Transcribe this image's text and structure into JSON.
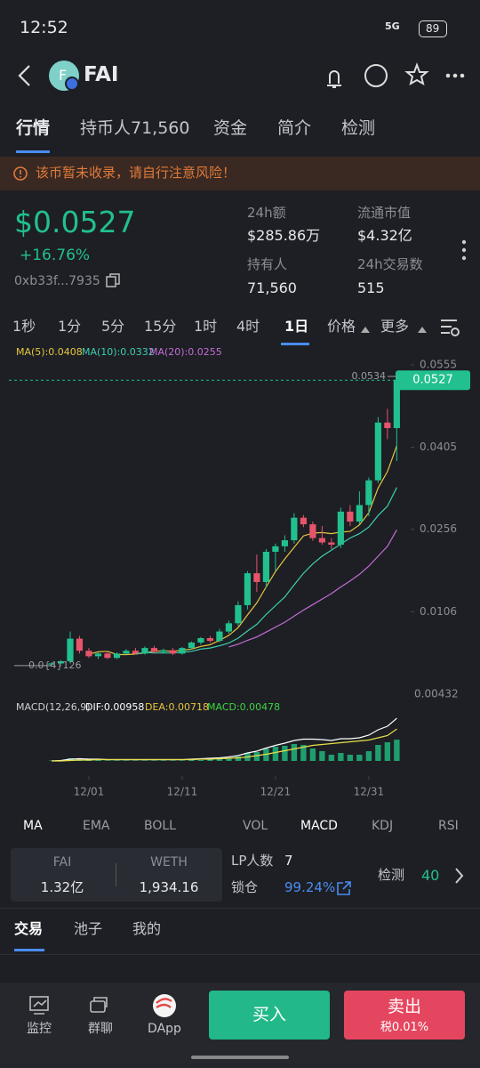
{
  "status_bar": {
    "time": "12:52",
    "network": "5G",
    "battery": "89"
  },
  "header": {
    "icon_letter": "F",
    "token": "FAI"
  },
  "tabs": [
    "行情",
    "持币人71,560",
    "资金",
    "简介",
    "检测"
  ],
  "warning": "该币暂未收录，请自行注意风险！",
  "price": {
    "value": "$0.0527",
    "change": "+16.76%",
    "address": "0xb33f...7935"
  },
  "stats": [
    {
      "label": "24h额",
      "value": "$285.86万"
    },
    {
      "label": "流通市值",
      "value": "$4.32亿"
    },
    {
      "label": "持有人",
      "value": "71,560"
    },
    {
      "label": "24h交易数",
      "value": "515"
    }
  ],
  "intervals": [
    "1秒",
    "1分",
    "5分",
    "15分",
    "1时",
    "4时",
    "1日",
    "价格",
    "更多"
  ],
  "kline": {
    "type": "candlestick",
    "ma_labels": [
      "MA(5):0.0408",
      "MA(10):0.0332",
      "MA(20):0.0255"
    ],
    "ylim": [
      -0.0044,
      0.0563
    ],
    "yticks": [
      0.0555,
      0.0405,
      0.0256,
      0.0106
    ],
    "xlim": [
      -4,
      38.3
    ],
    "xticks": [
      {
        "value": 4,
        "label": "12/01"
      },
      {
        "value": 14,
        "label": "12/11"
      },
      {
        "value": 24,
        "label": "12/21"
      },
      {
        "value": 34,
        "label": "12/31"
      }
    ],
    "high_label": "0.0534",
    "low_label": "0.0{4}126",
    "bottom_label": "0.00432",
    "last_price_label": "0.0527",
    "last_price": 0.0527,
    "candles": [
      [
        0.001,
        0.0014,
        0.0008,
        0.0012
      ],
      [
        0.0012,
        0.0018,
        0.001,
        0.0016
      ],
      [
        0.0016,
        0.007,
        0.0012,
        0.0057
      ],
      [
        0.0057,
        0.0062,
        0.003,
        0.0035
      ],
      [
        0.0035,
        0.004,
        0.0022,
        0.0025
      ],
      [
        0.0025,
        0.0033,
        0.002,
        0.003
      ],
      [
        0.003,
        0.0034,
        0.002,
        0.0022
      ],
      [
        0.0022,
        0.0032,
        0.002,
        0.003
      ],
      [
        0.003,
        0.0038,
        0.0027,
        0.0035
      ],
      [
        0.0035,
        0.004,
        0.0028,
        0.003
      ],
      [
        0.003,
        0.0043,
        0.0028,
        0.004
      ],
      [
        0.004,
        0.0044,
        0.003,
        0.0033
      ],
      [
        0.0033,
        0.0039,
        0.003,
        0.0036
      ],
      [
        0.0036,
        0.004,
        0.0027,
        0.003
      ],
      [
        0.003,
        0.0042,
        0.0028,
        0.004
      ],
      [
        0.004,
        0.0052,
        0.0037,
        0.005
      ],
      [
        0.005,
        0.006,
        0.0046,
        0.0058
      ],
      [
        0.0058,
        0.0062,
        0.005,
        0.0053
      ],
      [
        0.0053,
        0.0075,
        0.005,
        0.007
      ],
      [
        0.007,
        0.009,
        0.0066,
        0.0085
      ],
      [
        0.0085,
        0.0125,
        0.008,
        0.0118
      ],
      [
        0.0118,
        0.018,
        0.011,
        0.0176
      ],
      [
        0.0176,
        0.021,
        0.0142,
        0.016
      ],
      [
        0.016,
        0.022,
        0.015,
        0.0215
      ],
      [
        0.0215,
        0.023,
        0.018,
        0.0225
      ],
      [
        0.0225,
        0.0245,
        0.0215,
        0.0236
      ],
      [
        0.0236,
        0.0285,
        0.023,
        0.0277
      ],
      [
        0.0277,
        0.0282,
        0.026,
        0.0265
      ],
      [
        0.0265,
        0.027,
        0.0235,
        0.024
      ],
      [
        0.024,
        0.0262,
        0.0228,
        0.0232
      ],
      [
        0.0232,
        0.024,
        0.022,
        0.0228
      ],
      [
        0.0228,
        0.0295,
        0.0222,
        0.0288
      ],
      [
        0.0288,
        0.03,
        0.0262,
        0.027
      ],
      [
        0.027,
        0.0325,
        0.0265,
        0.03
      ],
      [
        0.03,
        0.035,
        0.028,
        0.0345
      ],
      [
        0.0345,
        0.046,
        0.034,
        0.045
      ],
      [
        0.045,
        0.0475,
        0.042,
        0.044
      ],
      [
        0.044,
        0.0534,
        0.038,
        0.0527
      ]
    ],
    "ma": [
      {
        "name": "MA5",
        "color": "#e7c53f",
        "values": [
          null,
          null,
          null,
          null,
          0.0029,
          0.0033,
          0.0034,
          0.0028,
          0.0028,
          0.0029,
          0.0031,
          0.0034,
          0.0035,
          0.0034,
          0.0036,
          0.0038,
          0.0043,
          0.0046,
          0.0054,
          0.0063,
          0.0077,
          0.01,
          0.0122,
          0.0151,
          0.0179,
          0.0202,
          0.0223,
          0.0244,
          0.0249,
          0.025,
          0.0248,
          0.0251,
          0.0252,
          0.0264,
          0.0286,
          0.0331,
          0.0361,
          0.0408
        ]
      },
      {
        "name": "MA10",
        "color": "#3ecfb0",
        "values": [
          null,
          null,
          null,
          null,
          null,
          null,
          null,
          null,
          null,
          0.0029,
          0.0032,
          0.0031,
          0.0031,
          0.0031,
          0.0032,
          0.0034,
          0.0038,
          0.004,
          0.0044,
          0.0049,
          0.0058,
          0.0071,
          0.0083,
          0.0101,
          0.0117,
          0.0133,
          0.0155,
          0.0176,
          0.0193,
          0.0207,
          0.0218,
          0.0229,
          0.024,
          0.0248,
          0.026,
          0.0281,
          0.0298,
          0.0332
        ]
      },
      {
        "name": "MA20",
        "color": "#c56cd6",
        "values": [
          null,
          null,
          null,
          null,
          null,
          null,
          null,
          null,
          null,
          null,
          null,
          null,
          null,
          null,
          null,
          null,
          null,
          null,
          null,
          0.0042,
          0.0047,
          0.0054,
          0.006,
          0.0069,
          0.0078,
          0.0087,
          0.0098,
          0.0109,
          0.0119,
          0.0129,
          0.0139,
          0.0151,
          0.0162,
          0.0174,
          0.0189,
          0.0207,
          0.0225,
          0.0255
        ]
      }
    ]
  },
  "macd": {
    "labels": [
      "MACD(12,26,9)",
      "DIF:0.00958",
      "DEA:0.00718",
      "MACD:0.00478"
    ],
    "ylim": [
      0,
      0.011
    ],
    "dif": [
      0,
      0.0001,
      0.0004,
      0.0005,
      0.0004,
      0.0004,
      0.0003,
      0.0003,
      0.0003,
      0.0003,
      0.0003,
      0.0003,
      0.0003,
      0.0003,
      0.0003,
      0.0004,
      0.0005,
      0.0006,
      0.0007,
      0.0009,
      0.0012,
      0.0018,
      0.0022,
      0.0029,
      0.0035,
      0.004,
      0.0046,
      0.0049,
      0.0049,
      0.0048,
      0.0046,
      0.005,
      0.005,
      0.0052,
      0.0058,
      0.007,
      0.0078,
      0.00958
    ],
    "dea": [
      0,
      0,
      0.0001,
      0.0002,
      0.0002,
      0.0003,
      0.0003,
      0.0003,
      0.0003,
      0.0003,
      0.0003,
      0.0003,
      0.0003,
      0.0003,
      0.0003,
      0.0003,
      0.0004,
      0.0004,
      0.0005,
      0.0006,
      0.0007,
      0.0009,
      0.0012,
      0.0015,
      0.0019,
      0.0023,
      0.0027,
      0.0031,
      0.0035,
      0.0037,
      0.0039,
      0.0041,
      0.0043,
      0.0045,
      0.0047,
      0.0052,
      0.0057,
      0.00718
    ],
    "hist": [
      0,
      0.0002,
      0.0006,
      0.0006,
      0.0004,
      0.0002,
      0,
      0,
      0,
      0,
      0,
      0,
      0,
      0,
      0,
      0.0002,
      0.0002,
      0.0004,
      0.0004,
      0.0006,
      0.001,
      0.0018,
      0.002,
      0.0028,
      0.0032,
      0.0034,
      0.0038,
      0.0036,
      0.0028,
      0.0022,
      0.0014,
      0.0018,
      0.0014,
      0.0014,
      0.0022,
      0.0036,
      0.0042,
      0.00478
    ]
  },
  "indicators": [
    "MA",
    "EMA",
    "BOLL",
    "VOL",
    "MACD",
    "KDJ",
    "RSI"
  ],
  "pool": {
    "token_a": "FAI",
    "amount_a": "1.32亿",
    "token_b": "WETH",
    "amount_b": "1,934.16",
    "lp_label": "LP人数",
    "lp_value": "7",
    "lock_label": "锁仓",
    "lock_value": "99.24%",
    "check_label": "检测",
    "check_value": "40"
  },
  "bottom_tabs": [
    "交易",
    "池子",
    "我的"
  ],
  "nav": {
    "items": [
      "监控",
      "群聊",
      "DApp"
    ],
    "buy": "买入",
    "sell": "卖出",
    "tax": "税0.01%"
  }
}
